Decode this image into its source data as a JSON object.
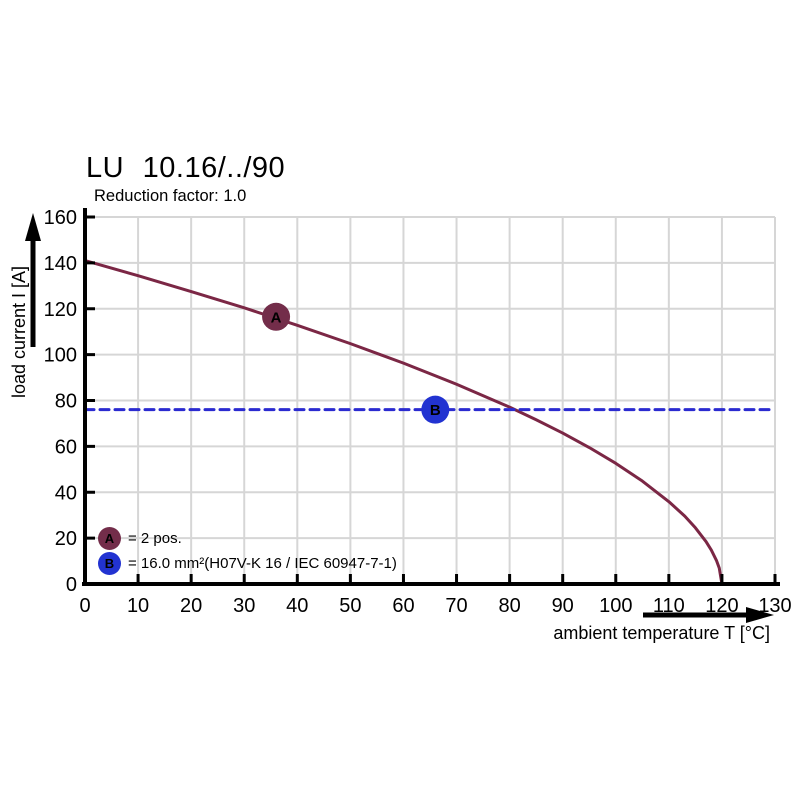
{
  "header": {
    "title": "LU 10.16/../90",
    "subtitle": "Reduction factor: 1.0"
  },
  "colors": {
    "curve": "#7b2745",
    "marker_a": "#732d4a",
    "marker_b": "#2233d1",
    "dashed_limit_line": "#2b2bd0",
    "grid": "#d6d6d6",
    "axis": "#000000"
  },
  "chart_data": {
    "type": "line",
    "title": "LU 10.16/../90",
    "subtitle": "Reduction factor: 1.0",
    "xlabel": "ambient temperature T [°C]",
    "ylabel": "load current I [A]",
    "xlim": [
      0,
      130
    ],
    "ylim": [
      0,
      160
    ],
    "x_ticks": [
      0,
      10,
      20,
      30,
      40,
      50,
      60,
      70,
      80,
      90,
      100,
      110,
      120,
      130
    ],
    "y_ticks": [
      0,
      20,
      40,
      60,
      80,
      100,
      120,
      140,
      160
    ],
    "grid": true,
    "series": [
      {
        "name": "derating-curve",
        "style": "solid",
        "color": "#7b2745",
        "points": [
          [
            0,
            141
          ],
          [
            10,
            134.4
          ],
          [
            20,
            127.5
          ],
          [
            30,
            120.4
          ],
          [
            40,
            112.8
          ],
          [
            50,
            104.8
          ],
          [
            60,
            96.3
          ],
          [
            70,
            87.1
          ],
          [
            80,
            77.1
          ],
          [
            85,
            71.6
          ],
          [
            90,
            65.8
          ],
          [
            95,
            59.5
          ],
          [
            100,
            52.6
          ],
          [
            105,
            44.9
          ],
          [
            110,
            35.9
          ],
          [
            113,
            29.6
          ],
          [
            115,
            24.5
          ],
          [
            117,
            18.5
          ],
          [
            118,
            14.8
          ],
          [
            119,
            10.1
          ],
          [
            119.5,
            6.9
          ],
          [
            120,
            0
          ]
        ]
      },
      {
        "name": "wire-capacity-limit",
        "style": "dashed",
        "color": "#2b2bd0",
        "points": [
          [
            0,
            76
          ],
          [
            130,
            76
          ]
        ]
      }
    ],
    "markers": [
      {
        "label": "A",
        "x": 36,
        "y": 116.5,
        "color": "#732d4a"
      },
      {
        "label": "B",
        "x": 66,
        "y": 76,
        "color": "#2233d1"
      }
    ],
    "legend": [
      {
        "label": "A",
        "color": "#732d4a",
        "text": "= 2 pos."
      },
      {
        "label": "B",
        "color": "#2233d1",
        "text": "= 16.0 mm²(H07V-K 16 / IEC 60947-7-1)"
      }
    ],
    "legend_position": "bottom-left-inside"
  }
}
